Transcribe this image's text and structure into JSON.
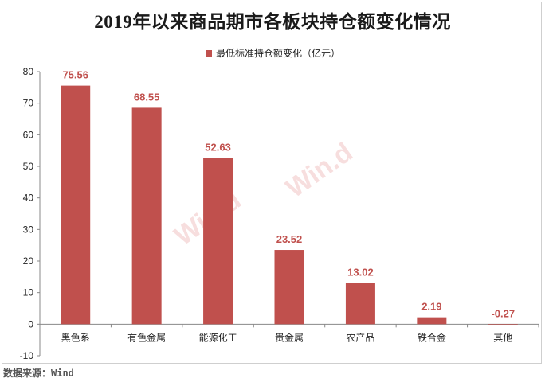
{
  "title": "2019年以来商品期市各板块持仓额变化情况",
  "source": "数据来源：Wind",
  "watermarks": [
    "Win.d",
    "Win.d"
  ],
  "chart_data": {
    "type": "bar",
    "title": "2019年以来商品期市各板块持仓额变化情况",
    "categories": [
      "黑色系",
      "有色金属",
      "能源化工",
      "贵金属",
      "农产品",
      "铁合金",
      "其他"
    ],
    "series": [
      {
        "name": "最低标准持仓额变化（亿元）",
        "values": [
          75.56,
          68.55,
          52.63,
          23.52,
          13.02,
          2.19,
          -0.27
        ],
        "labels": [
          "75.56",
          "68.55",
          "52.63",
          "23.52",
          "13.02",
          "2.19",
          "-0.27"
        ],
        "color": "#c0504d"
      }
    ],
    "yticks": [
      "80",
      "70",
      "60",
      "50",
      "40",
      "30",
      "20",
      "10",
      "0",
      "-10"
    ],
    "ylim": [
      -10,
      80
    ],
    "grid": false,
    "legend": "top-center",
    "xlabel": "",
    "ylabel": ""
  }
}
